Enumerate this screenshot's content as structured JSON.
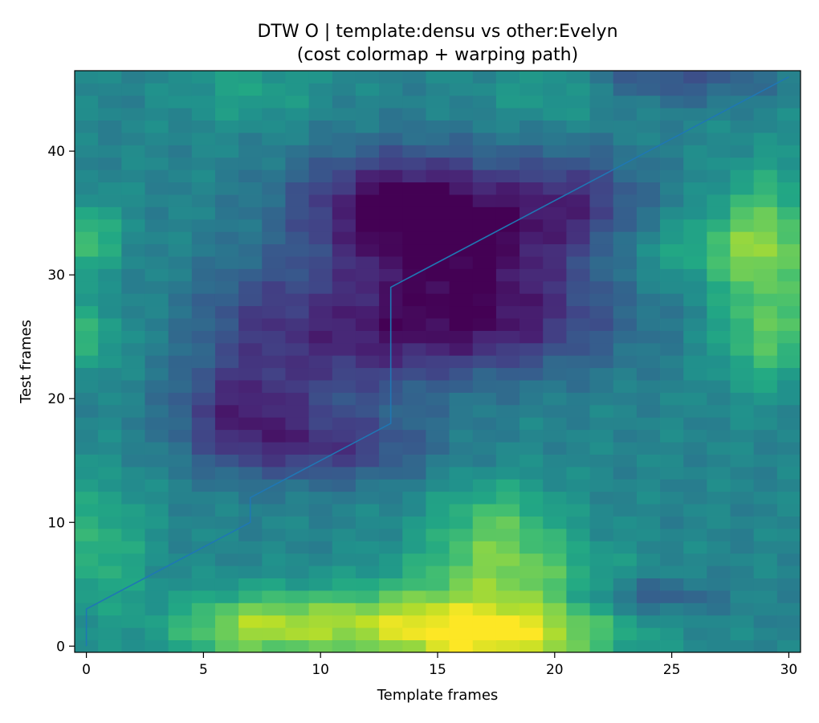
{
  "chart_data": {
    "type": "heatmap",
    "title": "DTW O | template:densu vs other:Evelyn",
    "subtitle": "(cost colormap + warping path)",
    "xlabel": "Template frames",
    "ylabel": "Test frames",
    "colormap": "viridis",
    "n_template_frames": 31,
    "n_test_frames": 47,
    "xlim": [
      -0.5,
      30.5
    ],
    "ylim": [
      -0.5,
      46.5
    ],
    "xticks": [
      0,
      5,
      10,
      15,
      20,
      25,
      30
    ],
    "yticks": [
      0,
      10,
      20,
      30,
      40
    ],
    "value_range": [
      0,
      1
    ],
    "path_color": "#1f77b4",
    "warping_path": [
      [
        0,
        0
      ],
      [
        0,
        3
      ],
      [
        7,
        10
      ],
      [
        7,
        12
      ],
      [
        13,
        18
      ],
      [
        13,
        29
      ],
      [
        30,
        46
      ]
    ]
  }
}
